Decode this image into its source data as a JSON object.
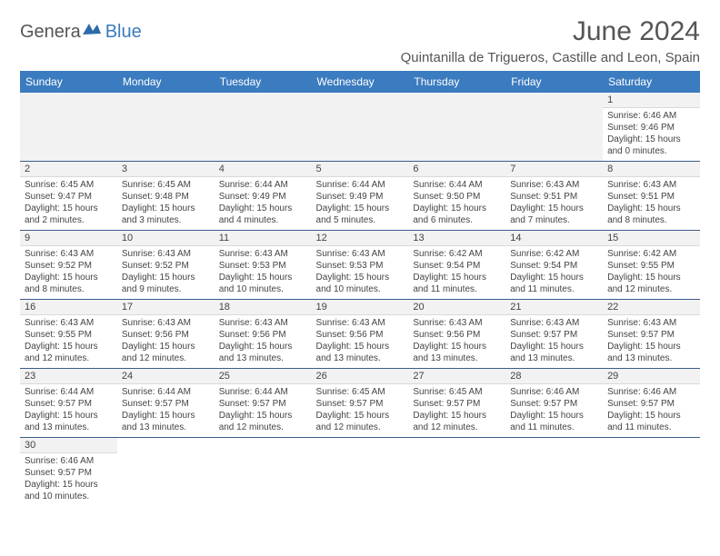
{
  "logo": {
    "part1": "Genera",
    "part2": "Blue"
  },
  "title": "June 2024",
  "location": "Quintanilla de Trigueros, Castille and Leon, Spain",
  "colors": {
    "header_bg": "#3b7bbf",
    "header_fg": "#ffffff",
    "row_border": "#3b5b8a",
    "daynum_bg": "#f2f2f2",
    "text": "#444444",
    "title_color": "#555555"
  },
  "typography": {
    "title_fontsize": 30,
    "location_fontsize": 15,
    "header_fontsize": 12,
    "daynum_fontsize": 11,
    "body_fontsize": 10
  },
  "day_names": [
    "Sunday",
    "Monday",
    "Tuesday",
    "Wednesday",
    "Thursday",
    "Friday",
    "Saturday"
  ],
  "weeks": [
    [
      null,
      null,
      null,
      null,
      null,
      null,
      {
        "n": "1",
        "sunrise": "Sunrise: 6:46 AM",
        "sunset": "Sunset: 9:46 PM",
        "day1": "Daylight: 15 hours",
        "day2": "and 0 minutes."
      }
    ],
    [
      {
        "n": "2",
        "sunrise": "Sunrise: 6:45 AM",
        "sunset": "Sunset: 9:47 PM",
        "day1": "Daylight: 15 hours",
        "day2": "and 2 minutes."
      },
      {
        "n": "3",
        "sunrise": "Sunrise: 6:45 AM",
        "sunset": "Sunset: 9:48 PM",
        "day1": "Daylight: 15 hours",
        "day2": "and 3 minutes."
      },
      {
        "n": "4",
        "sunrise": "Sunrise: 6:44 AM",
        "sunset": "Sunset: 9:49 PM",
        "day1": "Daylight: 15 hours",
        "day2": "and 4 minutes."
      },
      {
        "n": "5",
        "sunrise": "Sunrise: 6:44 AM",
        "sunset": "Sunset: 9:49 PM",
        "day1": "Daylight: 15 hours",
        "day2": "and 5 minutes."
      },
      {
        "n": "6",
        "sunrise": "Sunrise: 6:44 AM",
        "sunset": "Sunset: 9:50 PM",
        "day1": "Daylight: 15 hours",
        "day2": "and 6 minutes."
      },
      {
        "n": "7",
        "sunrise": "Sunrise: 6:43 AM",
        "sunset": "Sunset: 9:51 PM",
        "day1": "Daylight: 15 hours",
        "day2": "and 7 minutes."
      },
      {
        "n": "8",
        "sunrise": "Sunrise: 6:43 AM",
        "sunset": "Sunset: 9:51 PM",
        "day1": "Daylight: 15 hours",
        "day2": "and 8 minutes."
      }
    ],
    [
      {
        "n": "9",
        "sunrise": "Sunrise: 6:43 AM",
        "sunset": "Sunset: 9:52 PM",
        "day1": "Daylight: 15 hours",
        "day2": "and 8 minutes."
      },
      {
        "n": "10",
        "sunrise": "Sunrise: 6:43 AM",
        "sunset": "Sunset: 9:52 PM",
        "day1": "Daylight: 15 hours",
        "day2": "and 9 minutes."
      },
      {
        "n": "11",
        "sunrise": "Sunrise: 6:43 AM",
        "sunset": "Sunset: 9:53 PM",
        "day1": "Daylight: 15 hours",
        "day2": "and 10 minutes."
      },
      {
        "n": "12",
        "sunrise": "Sunrise: 6:43 AM",
        "sunset": "Sunset: 9:53 PM",
        "day1": "Daylight: 15 hours",
        "day2": "and 10 minutes."
      },
      {
        "n": "13",
        "sunrise": "Sunrise: 6:42 AM",
        "sunset": "Sunset: 9:54 PM",
        "day1": "Daylight: 15 hours",
        "day2": "and 11 minutes."
      },
      {
        "n": "14",
        "sunrise": "Sunrise: 6:42 AM",
        "sunset": "Sunset: 9:54 PM",
        "day1": "Daylight: 15 hours",
        "day2": "and 11 minutes."
      },
      {
        "n": "15",
        "sunrise": "Sunrise: 6:42 AM",
        "sunset": "Sunset: 9:55 PM",
        "day1": "Daylight: 15 hours",
        "day2": "and 12 minutes."
      }
    ],
    [
      {
        "n": "16",
        "sunrise": "Sunrise: 6:43 AM",
        "sunset": "Sunset: 9:55 PM",
        "day1": "Daylight: 15 hours",
        "day2": "and 12 minutes."
      },
      {
        "n": "17",
        "sunrise": "Sunrise: 6:43 AM",
        "sunset": "Sunset: 9:56 PM",
        "day1": "Daylight: 15 hours",
        "day2": "and 12 minutes."
      },
      {
        "n": "18",
        "sunrise": "Sunrise: 6:43 AM",
        "sunset": "Sunset: 9:56 PM",
        "day1": "Daylight: 15 hours",
        "day2": "and 13 minutes."
      },
      {
        "n": "19",
        "sunrise": "Sunrise: 6:43 AM",
        "sunset": "Sunset: 9:56 PM",
        "day1": "Daylight: 15 hours",
        "day2": "and 13 minutes."
      },
      {
        "n": "20",
        "sunrise": "Sunrise: 6:43 AM",
        "sunset": "Sunset: 9:56 PM",
        "day1": "Daylight: 15 hours",
        "day2": "and 13 minutes."
      },
      {
        "n": "21",
        "sunrise": "Sunrise: 6:43 AM",
        "sunset": "Sunset: 9:57 PM",
        "day1": "Daylight: 15 hours",
        "day2": "and 13 minutes."
      },
      {
        "n": "22",
        "sunrise": "Sunrise: 6:43 AM",
        "sunset": "Sunset: 9:57 PM",
        "day1": "Daylight: 15 hours",
        "day2": "and 13 minutes."
      }
    ],
    [
      {
        "n": "23",
        "sunrise": "Sunrise: 6:44 AM",
        "sunset": "Sunset: 9:57 PM",
        "day1": "Daylight: 15 hours",
        "day2": "and 13 minutes."
      },
      {
        "n": "24",
        "sunrise": "Sunrise: 6:44 AM",
        "sunset": "Sunset: 9:57 PM",
        "day1": "Daylight: 15 hours",
        "day2": "and 13 minutes."
      },
      {
        "n": "25",
        "sunrise": "Sunrise: 6:44 AM",
        "sunset": "Sunset: 9:57 PM",
        "day1": "Daylight: 15 hours",
        "day2": "and 12 minutes."
      },
      {
        "n": "26",
        "sunrise": "Sunrise: 6:45 AM",
        "sunset": "Sunset: 9:57 PM",
        "day1": "Daylight: 15 hours",
        "day2": "and 12 minutes."
      },
      {
        "n": "27",
        "sunrise": "Sunrise: 6:45 AM",
        "sunset": "Sunset: 9:57 PM",
        "day1": "Daylight: 15 hours",
        "day2": "and 12 minutes."
      },
      {
        "n": "28",
        "sunrise": "Sunrise: 6:46 AM",
        "sunset": "Sunset: 9:57 PM",
        "day1": "Daylight: 15 hours",
        "day2": "and 11 minutes."
      },
      {
        "n": "29",
        "sunrise": "Sunrise: 6:46 AM",
        "sunset": "Sunset: 9:57 PM",
        "day1": "Daylight: 15 hours",
        "day2": "and 11 minutes."
      }
    ],
    [
      {
        "n": "30",
        "sunrise": "Sunrise: 6:46 AM",
        "sunset": "Sunset: 9:57 PM",
        "day1": "Daylight: 15 hours",
        "day2": "and 10 minutes."
      },
      null,
      null,
      null,
      null,
      null,
      null
    ]
  ]
}
